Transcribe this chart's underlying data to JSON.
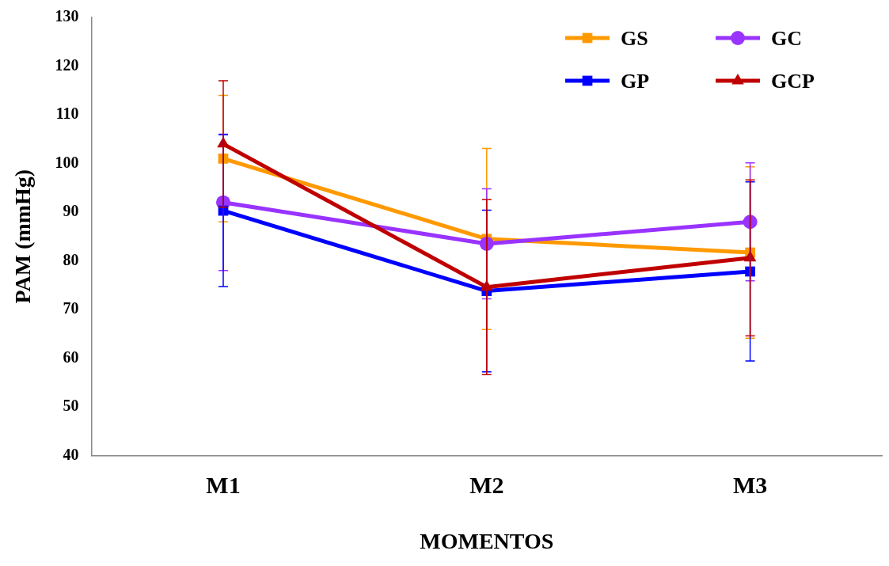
{
  "chart_data": {
    "type": "line",
    "xlabel": "MOMENTOS",
    "ylabel": "PAM (mmHg)",
    "categories": [
      "M1",
      "M2",
      "M3"
    ],
    "ylim": [
      40,
      130
    ],
    "yticks": [
      40,
      50,
      60,
      70,
      80,
      90,
      100,
      110,
      120,
      130
    ],
    "grid": false,
    "legend": "top right",
    "series": [
      {
        "name": "GS",
        "color": "#ff9900",
        "marker": "square",
        "values": [
          101,
          84.5,
          81.7
        ],
        "errors": [
          13,
          18.6,
          17.6
        ]
      },
      {
        "name": "GC",
        "color": "#9933ff",
        "marker": "circle",
        "values": [
          92,
          83.5,
          88
        ],
        "errors": [
          14,
          11.3,
          12.1
        ]
      },
      {
        "name": "GP",
        "color": "#0000ff",
        "marker": "square",
        "values": [
          90.3,
          73.8,
          77.8
        ],
        "errors": [
          15.6,
          16.6,
          18.4
        ]
      },
      {
        "name": "GCP",
        "color": "#c00000",
        "marker": "triangle",
        "values": [
          104,
          74.6,
          80.6
        ],
        "errors": [
          13,
          18,
          16
        ]
      }
    ]
  }
}
